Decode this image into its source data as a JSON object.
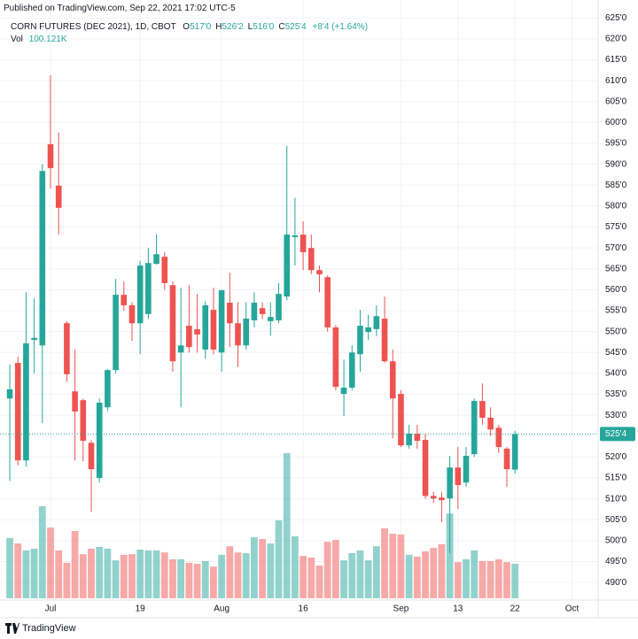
{
  "header": {
    "published": "Published on TradingView.com, Sep 22, 2021 17:02 UTC-5"
  },
  "footer": {
    "brand": "TradingView"
  },
  "chart_data": {
    "type": "candlestick",
    "legend": {
      "symbol": "CORN FUTURES (DEC 2021), 1D, CBOT",
      "items": [
        {
          "key": "O",
          "value": "517'0"
        },
        {
          "key": "H",
          "value": "526'2"
        },
        {
          "key": "L",
          "value": "516'0"
        },
        {
          "key": "C",
          "value": "525'4"
        }
      ],
      "change": "+8'4 (+1.64%)",
      "volume_key": "Vol",
      "volume_value": "100.121K"
    },
    "up_color": "#26a69a",
    "down_color": "#ef5350",
    "open": [
      534.0,
      542.5,
      519.2,
      548.0,
      546.7,
      594.8,
      584.9,
      552.0,
      535.7,
      533.6,
      523.4,
      515.0,
      531.9,
      540.8,
      558.8,
      556.3,
      552.0,
      554.2,
      566.2,
      567.9,
      561.1,
      545.0,
      551.4,
      550.6,
      545.7,
      555.2,
      545.0,
      556.9,
      552.0,
      546.7,
      552.7,
      555.6,
      552.5,
      552.7,
      558.4,
      572.6,
      573.2,
      570.0,
      564.7,
      563.0,
      551.0,
      535.1,
      536.6,
      544.6,
      549.9,
      550.6,
      553.1,
      542.9,
      535.1,
      522.8,
      525.6,
      524.1,
      510.7,
      510.3,
      510.1,
      517.5,
      513.9,
      520.7,
      533.4,
      529.4,
      527.0,
      522.0,
      517.0
    ],
    "high": [
      542.1,
      544.0,
      559.4,
      558.0,
      590.0,
      611.3,
      597.6,
      552.5,
      545.7,
      534.0,
      524.0,
      534.0,
      541.0,
      562.6,
      562.0,
      557.0,
      566.9,
      570.0,
      573.2,
      569.0,
      562.0,
      560.5,
      561.1,
      559.0,
      557.3,
      560.5,
      560.0,
      564.1,
      557.0,
      557.0,
      559.4,
      557.0,
      557.0,
      561.6,
      594.4,
      582.0,
      576.4,
      573.2,
      565.8,
      563.5,
      551.5,
      543.3,
      546.7,
      555.2,
      554.0,
      556.3,
      558.4,
      545.7,
      536.0,
      527.7,
      527.7,
      525.6,
      511.7,
      511.7,
      520.3,
      522.4,
      522.4,
      534.0,
      537.6,
      531.9,
      527.7,
      522.4,
      526.25
    ],
    "low": [
      514.3,
      518.0,
      517.7,
      540.0,
      528.1,
      584.2,
      573.2,
      538.0,
      519.2,
      519.0,
      506.9,
      513.9,
      531.0,
      540.0,
      555.0,
      547.8,
      544.6,
      553.0,
      566.0,
      560.0,
      540.4,
      531.9,
      545.0,
      545.0,
      543.5,
      544.6,
      540.4,
      546.3,
      541.5,
      545.7,
      551.0,
      553.0,
      549.0,
      552.0,
      557.5,
      565.8,
      564.7,
      563.7,
      559.4,
      550.0,
      536.0,
      529.8,
      536.0,
      540.4,
      548.0,
      548.9,
      542.5,
      524.5,
      522.4,
      522.0,
      522.0,
      510.0,
      509.0,
      504.4,
      497.0,
      507.6,
      512.9,
      520.0,
      527.7,
      525.0,
      521.0,
      512.9,
      516.0
    ],
    "close": [
      536.2,
      519.2,
      547.2,
      548.5,
      588.4,
      589.1,
      579.6,
      539.8,
      530.9,
      523.9,
      517.1,
      533.0,
      540.8,
      558.8,
      556.3,
      552.0,
      565.8,
      566.4,
      568.5,
      561.6,
      542.9,
      546.7,
      546.3,
      549.3,
      556.3,
      545.7,
      559.9,
      552.0,
      546.7,
      553.1,
      556.9,
      554.2,
      553.5,
      559.0,
      573.2,
      573.0,
      569.0,
      564.7,
      563.7,
      551.0,
      536.8,
      536.6,
      545.0,
      551.4,
      551.0,
      553.7,
      542.9,
      534.0,
      522.8,
      525.6,
      523.9,
      510.7,
      510.1,
      509.7,
      517.5,
      513.3,
      520.3,
      533.4,
      529.4,
      526.6,
      522.4,
      517.1,
      525.5
    ],
    "volume": [
      175000,
      159000,
      139000,
      144000,
      267000,
      205000,
      139000,
      103000,
      195000,
      128000,
      144000,
      149000,
      144000,
      110000,
      126000,
      128000,
      141000,
      139000,
      139000,
      133000,
      113000,
      113000,
      103000,
      100000,
      108000,
      92000,
      126000,
      151000,
      133000,
      131000,
      177000,
      172000,
      159000,
      226000,
      421000,
      180000,
      123000,
      118000,
      95000,
      164000,
      169000,
      110000,
      131000,
      139000,
      110000,
      151000,
      203000,
      187000,
      185000,
      126000,
      121000,
      136000,
      146000,
      157000,
      246000,
      105000,
      113000,
      139000,
      108000,
      108000,
      113000,
      105000,
      100121
    ],
    "xlim": [
      -1.2,
      72.2
    ],
    "xticks": [
      {
        "value": 5,
        "label": "Jul"
      },
      {
        "value": 16,
        "label": "19"
      },
      {
        "value": 26,
        "label": "Aug"
      },
      {
        "value": 36,
        "label": "16"
      },
      {
        "value": 48,
        "label": "Sep"
      },
      {
        "value": 55,
        "label": "13"
      },
      {
        "value": 62,
        "label": "22"
      },
      {
        "value": 69,
        "label": "Oct"
      }
    ],
    "ylim": [
      485.8,
      629.3
    ],
    "yticks": [
      {
        "value": 625,
        "label": "625'0"
      },
      {
        "value": 620,
        "label": "620'0"
      },
      {
        "value": 615,
        "label": "615'0"
      },
      {
        "value": 610,
        "label": "610'0"
      },
      {
        "value": 605,
        "label": "605'0"
      },
      {
        "value": 600,
        "label": "600'0"
      },
      {
        "value": 595,
        "label": "595'0"
      },
      {
        "value": 590,
        "label": "590'0"
      },
      {
        "value": 585,
        "label": "585'0"
      },
      {
        "value": 580,
        "label": "580'0"
      },
      {
        "value": 575,
        "label": "575'0"
      },
      {
        "value": 570,
        "label": "570'0"
      },
      {
        "value": 565,
        "label": "565'0"
      },
      {
        "value": 560,
        "label": "560'0"
      },
      {
        "value": 555,
        "label": "555'0"
      },
      {
        "value": 550,
        "label": "550'0"
      },
      {
        "value": 545,
        "label": "545'0"
      },
      {
        "value": 540,
        "label": "540'0"
      },
      {
        "value": 535,
        "label": "535'0"
      },
      {
        "value": 530,
        "label": "530'0"
      },
      {
        "value": 525,
        "label": "525'0"
      },
      {
        "value": 520,
        "label": "520'0"
      },
      {
        "value": 515,
        "label": "515'0"
      },
      {
        "value": 510,
        "label": "510'0"
      },
      {
        "value": 505,
        "label": "505'0"
      },
      {
        "value": 500,
        "label": "500'0"
      },
      {
        "value": 495,
        "label": "495'0"
      },
      {
        "value": 490,
        "label": "490'0"
      }
    ],
    "last_price": {
      "value": 525.5,
      "label": "525'4"
    },
    "grid": true
  }
}
